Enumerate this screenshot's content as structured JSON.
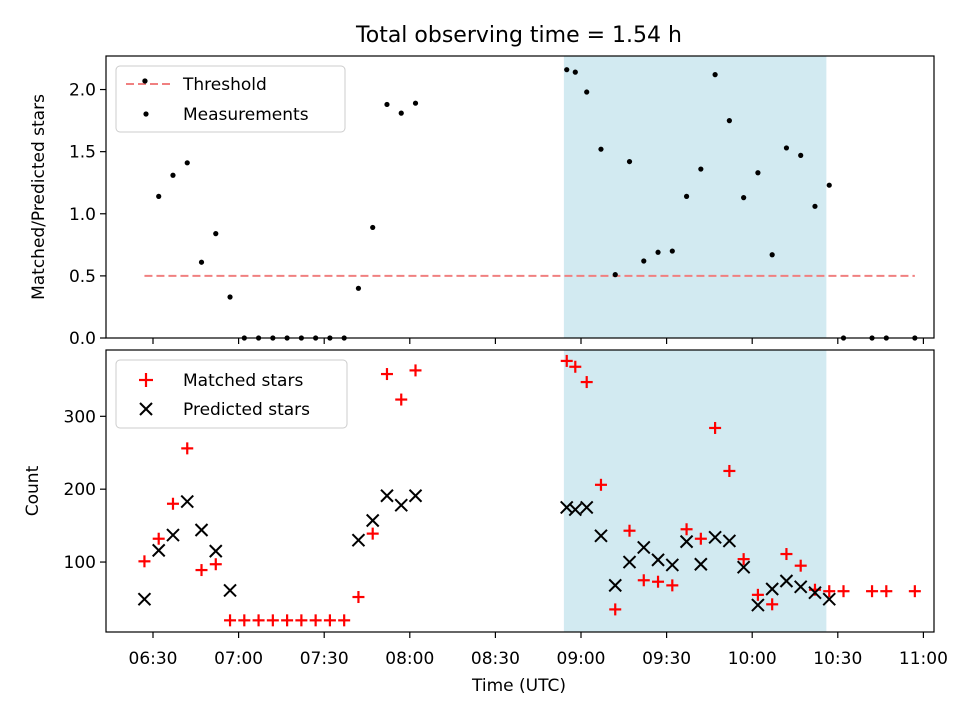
{
  "chart_data": {
    "type": "scatter",
    "title": "Total observing time = 1.54 h",
    "xlabel": "Time (UTC)",
    "x_ticks": [
      "06:30",
      "07:00",
      "07:30",
      "08:00",
      "08:30",
      "09:00",
      "09:30",
      "10:00",
      "10:30",
      "11:00"
    ],
    "highlight_span": {
      "from": "08:54",
      "to": "10:26",
      "color": "#add8e6"
    },
    "top": {
      "ylabel": "Matched/Predicted stars",
      "ylim": [
        0,
        2.27
      ],
      "y_ticks": [
        "0.0",
        "0.5",
        "1.0",
        "1.5",
        "2.0"
      ],
      "legend": [
        "Threshold",
        "Measurements"
      ],
      "threshold": {
        "value": 0.5,
        "from": "06:27",
        "to": "10:57",
        "color": "#f08080"
      },
      "points": [
        {
          "t": "06:27",
          "v": 2.07
        },
        {
          "t": "06:32",
          "v": 1.14
        },
        {
          "t": "06:37",
          "v": 1.31
        },
        {
          "t": "06:42",
          "v": 1.41
        },
        {
          "t": "06:47",
          "v": 0.61
        },
        {
          "t": "06:52",
          "v": 0.84
        },
        {
          "t": "06:57",
          "v": 0.33
        },
        {
          "t": "07:02",
          "v": 0
        },
        {
          "t": "07:07",
          "v": 0
        },
        {
          "t": "07:12",
          "v": 0
        },
        {
          "t": "07:17",
          "v": 0
        },
        {
          "t": "07:22",
          "v": 0
        },
        {
          "t": "07:27",
          "v": 0
        },
        {
          "t": "07:32",
          "v": 0
        },
        {
          "t": "07:37",
          "v": 0
        },
        {
          "t": "07:42",
          "v": 0.4
        },
        {
          "t": "07:47",
          "v": 0.89
        },
        {
          "t": "07:52",
          "v": 1.88
        },
        {
          "t": "07:57",
          "v": 1.81
        },
        {
          "t": "08:02",
          "v": 1.89
        },
        {
          "t": "08:55",
          "v": 2.16
        },
        {
          "t": "08:58",
          "v": 2.14
        },
        {
          "t": "09:02",
          "v": 1.98
        },
        {
          "t": "09:07",
          "v": 1.52
        },
        {
          "t": "09:12",
          "v": 0.51
        },
        {
          "t": "09:17",
          "v": 1.42
        },
        {
          "t": "09:22",
          "v": 0.62
        },
        {
          "t": "09:27",
          "v": 0.69
        },
        {
          "t": "09:32",
          "v": 0.7
        },
        {
          "t": "09:37",
          "v": 1.14
        },
        {
          "t": "09:42",
          "v": 1.36
        },
        {
          "t": "09:47",
          "v": 2.12
        },
        {
          "t": "09:52",
          "v": 1.75
        },
        {
          "t": "09:57",
          "v": 1.13
        },
        {
          "t": "10:02",
          "v": 1.33
        },
        {
          "t": "10:07",
          "v": 0.67
        },
        {
          "t": "10:12",
          "v": 1.53
        },
        {
          "t": "10:17",
          "v": 1.47
        },
        {
          "t": "10:22",
          "v": 1.06
        },
        {
          "t": "10:27",
          "v": 1.23
        },
        {
          "t": "10:32",
          "v": 0
        },
        {
          "t": "10:42",
          "v": 0
        },
        {
          "t": "10:47",
          "v": 0
        },
        {
          "t": "10:57",
          "v": 0
        }
      ]
    },
    "bottom": {
      "ylabel": "Count",
      "ylim": [
        4,
        391
      ],
      "y_ticks": [
        "100",
        "200",
        "300"
      ],
      "legend": [
        "Matched stars",
        "Predicted stars"
      ],
      "series": [
        {
          "name": "Matched stars",
          "marker": "plus",
          "color": "#ff0000",
          "points": [
            {
              "t": "06:27",
              "v": 101
            },
            {
              "t": "06:32",
              "v": 132
            },
            {
              "t": "06:37",
              "v": 180
            },
            {
              "t": "06:42",
              "v": 256
            },
            {
              "t": "06:47",
              "v": 89
            },
            {
              "t": "06:52",
              "v": 97
            },
            {
              "t": "06:57",
              "v": 20
            },
            {
              "t": "07:02",
              "v": 20
            },
            {
              "t": "07:07",
              "v": 20
            },
            {
              "t": "07:12",
              "v": 20
            },
            {
              "t": "07:17",
              "v": 20
            },
            {
              "t": "07:22",
              "v": 20
            },
            {
              "t": "07:27",
              "v": 20
            },
            {
              "t": "07:32",
              "v": 20
            },
            {
              "t": "07:37",
              "v": 20
            },
            {
              "t": "07:42",
              "v": 52
            },
            {
              "t": "07:47",
              "v": 139
            },
            {
              "t": "07:52",
              "v": 358
            },
            {
              "t": "07:57",
              "v": 323
            },
            {
              "t": "08:02",
              "v": 363
            },
            {
              "t": "08:55",
              "v": 376
            },
            {
              "t": "08:58",
              "v": 368
            },
            {
              "t": "09:02",
              "v": 347
            },
            {
              "t": "09:07",
              "v": 206
            },
            {
              "t": "09:12",
              "v": 35
            },
            {
              "t": "09:17",
              "v": 143
            },
            {
              "t": "09:22",
              "v": 75
            },
            {
              "t": "09:27",
              "v": 73
            },
            {
              "t": "09:32",
              "v": 68
            },
            {
              "t": "09:37",
              "v": 145
            },
            {
              "t": "09:42",
              "v": 132
            },
            {
              "t": "09:47",
              "v": 284
            },
            {
              "t": "09:52",
              "v": 225
            },
            {
              "t": "09:57",
              "v": 104
            },
            {
              "t": "10:02",
              "v": 55
            },
            {
              "t": "10:07",
              "v": 42
            },
            {
              "t": "10:12",
              "v": 111
            },
            {
              "t": "10:17",
              "v": 95
            },
            {
              "t": "10:22",
              "v": 62
            },
            {
              "t": "10:27",
              "v": 60
            },
            {
              "t": "10:32",
              "v": 60
            },
            {
              "t": "10:42",
              "v": 60
            },
            {
              "t": "10:47",
              "v": 60
            },
            {
              "t": "10:57",
              "v": 60
            }
          ]
        },
        {
          "name": "Predicted stars",
          "marker": "x",
          "color": "#000000",
          "points": [
            {
              "t": "06:27",
              "v": 49
            },
            {
              "t": "06:32",
              "v": 116
            },
            {
              "t": "06:37",
              "v": 137
            },
            {
              "t": "06:42",
              "v": 183
            },
            {
              "t": "06:47",
              "v": 144
            },
            {
              "t": "06:52",
              "v": 115
            },
            {
              "t": "06:57",
              "v": 61
            },
            {
              "t": "07:42",
              "v": 130
            },
            {
              "t": "07:47",
              "v": 157
            },
            {
              "t": "07:52",
              "v": 191
            },
            {
              "t": "07:57",
              "v": 178
            },
            {
              "t": "08:02",
              "v": 191
            },
            {
              "t": "08:55",
              "v": 175
            },
            {
              "t": "08:58",
              "v": 172
            },
            {
              "t": "09:02",
              "v": 175
            },
            {
              "t": "09:07",
              "v": 136
            },
            {
              "t": "09:12",
              "v": 68
            },
            {
              "t": "09:17",
              "v": 100
            },
            {
              "t": "09:22",
              "v": 120
            },
            {
              "t": "09:27",
              "v": 103
            },
            {
              "t": "09:32",
              "v": 96
            },
            {
              "t": "09:37",
              "v": 128
            },
            {
              "t": "09:42",
              "v": 97
            },
            {
              "t": "09:47",
              "v": 134
            },
            {
              "t": "09:52",
              "v": 129
            },
            {
              "t": "09:57",
              "v": 93
            },
            {
              "t": "10:02",
              "v": 41
            },
            {
              "t": "10:07",
              "v": 63
            },
            {
              "t": "10:12",
              "v": 74
            },
            {
              "t": "10:17",
              "v": 66
            },
            {
              "t": "10:22",
              "v": 58
            },
            {
              "t": "10:27",
              "v": 49
            }
          ]
        }
      ]
    }
  }
}
